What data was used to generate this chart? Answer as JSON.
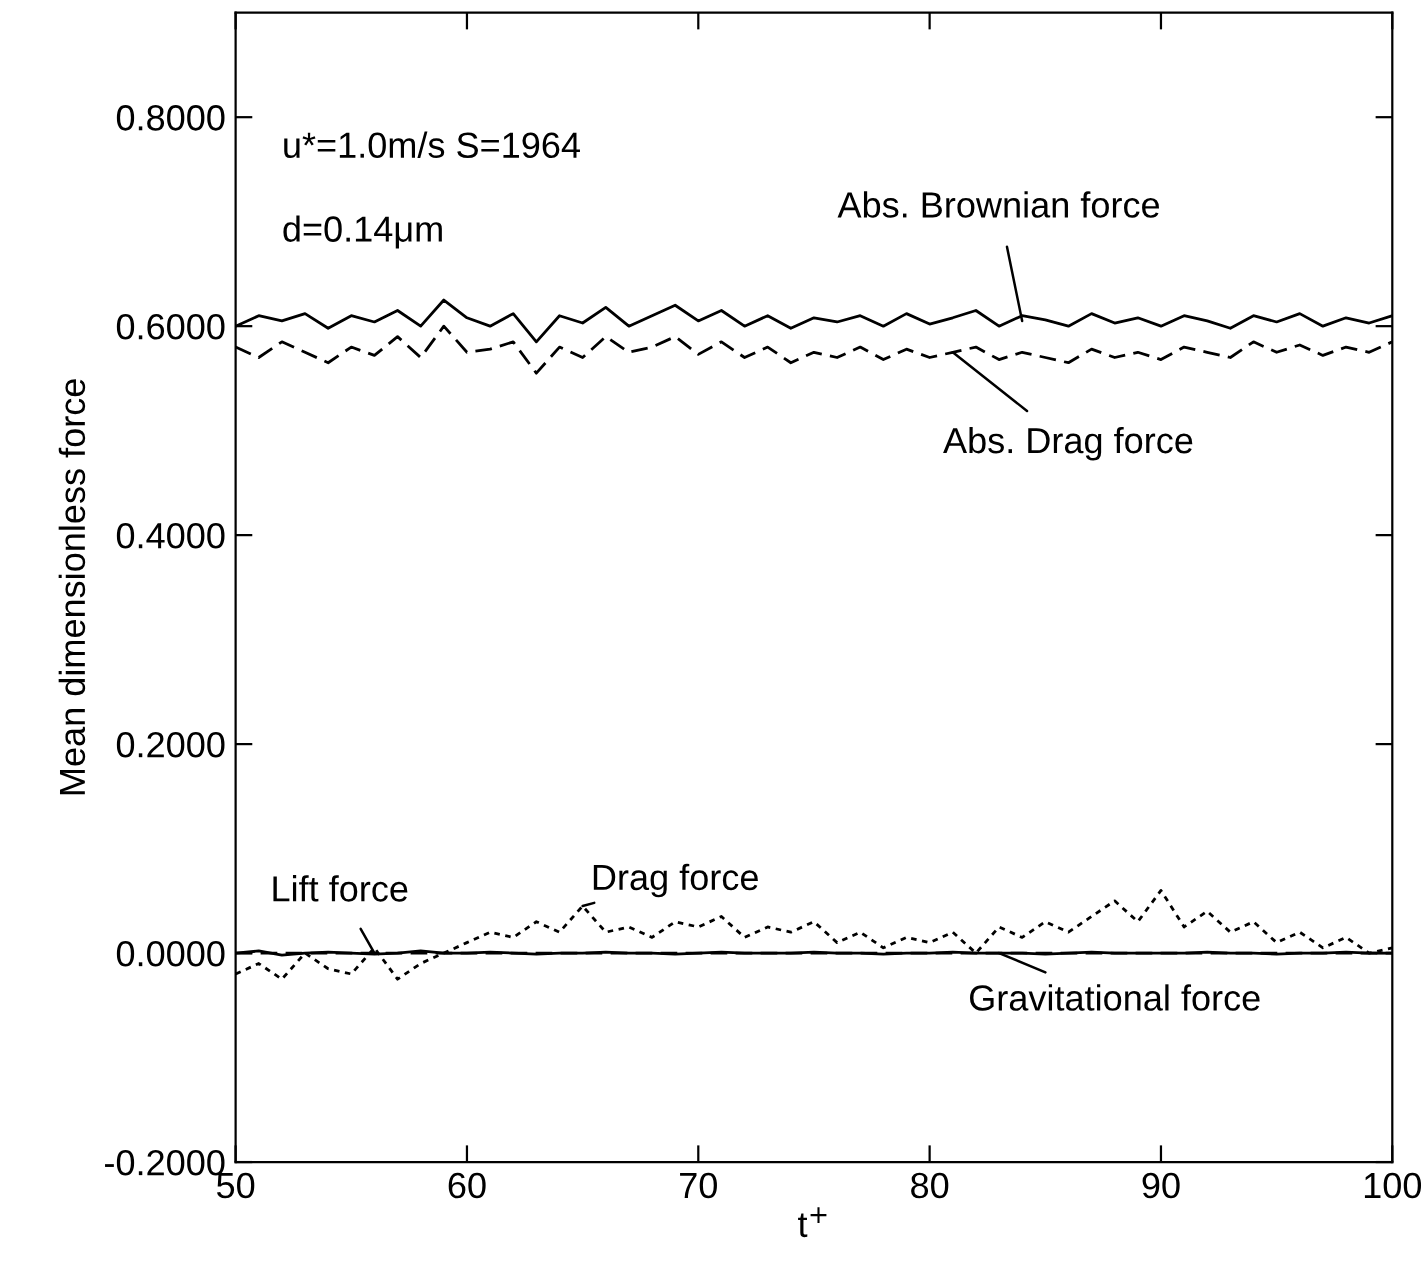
{
  "chart_data": {
    "type": "line",
    "xlabel": "t$^{+}$",
    "ylabel": "Mean dimensionless force",
    "grid": false,
    "legend": false,
    "marker": "none",
    "xlim": [
      50,
      100
    ],
    "xticks": [
      50,
      60,
      70,
      80,
      90,
      100
    ],
    "ylim": [
      -0.2,
      0.9
    ],
    "yticks": [
      {
        "value": -0.2,
        "label": "-0.2000"
      },
      {
        "value": 0.0,
        "label": "0.0000"
      },
      {
        "value": 0.2,
        "label": "0.2000"
      },
      {
        "value": 0.4,
        "label": "0.4000"
      },
      {
        "value": 0.6,
        "label": "0.6000"
      },
      {
        "value": 0.8,
        "label": "0.8000"
      }
    ],
    "x": [
      50,
      51,
      52,
      53,
      54,
      55,
      56,
      57,
      58,
      59,
      60,
      61,
      62,
      63,
      64,
      65,
      66,
      67,
      68,
      69,
      70,
      71,
      72,
      73,
      74,
      75,
      76,
      77,
      78,
      79,
      80,
      81,
      82,
      83,
      84,
      85,
      86,
      87,
      88,
      89,
      90,
      91,
      92,
      93,
      94,
      95,
      96,
      97,
      98,
      99,
      100
    ],
    "series": [
      {
        "color": "#000000",
        "line_style": "solid",
        "values": [
          0.6,
          0.61,
          0.605,
          0.612,
          0.598,
          0.61,
          0.604,
          0.615,
          0.6,
          0.625,
          0.608,
          0.6,
          0.612,
          0.585,
          0.61,
          0.603,
          0.618,
          0.6,
          0.61,
          0.62,
          0.605,
          0.615,
          0.6,
          0.61,
          0.598,
          0.608,
          0.604,
          0.61,
          0.6,
          0.612,
          0.602,
          0.608,
          0.615,
          0.6,
          0.61,
          0.606,
          0.6,
          0.612,
          0.603,
          0.608,
          0.6,
          0.61,
          0.605,
          0.598,
          0.61,
          0.604,
          0.612,
          0.6,
          0.608,
          0.603,
          0.61
        ]
      },
      {
        "color": "#000000",
        "line_style": "dashed",
        "values": [
          0.58,
          0.57,
          0.585,
          0.575,
          0.565,
          0.58,
          0.572,
          0.59,
          0.57,
          0.6,
          0.575,
          0.578,
          0.585,
          0.555,
          0.58,
          0.57,
          0.59,
          0.575,
          0.58,
          0.59,
          0.573,
          0.585,
          0.57,
          0.58,
          0.565,
          0.575,
          0.57,
          0.58,
          0.568,
          0.578,
          0.57,
          0.575,
          0.58,
          0.568,
          0.575,
          0.57,
          0.565,
          0.578,
          0.57,
          0.575,
          0.568,
          0.58,
          0.575,
          0.57,
          0.585,
          0.575,
          0.582,
          0.572,
          0.58,
          0.575,
          0.585
        ]
      },
      {
        "color": "#000000",
        "line_style": "dotted",
        "values": [
          -0.02,
          -0.01,
          -0.025,
          0.0,
          -0.015,
          -0.02,
          0.005,
          -0.025,
          -0.01,
          0.0,
          0.01,
          0.02,
          0.015,
          0.03,
          0.02,
          0.045,
          0.02,
          0.025,
          0.015,
          0.03,
          0.025,
          0.035,
          0.015,
          0.025,
          0.02,
          0.03,
          0.01,
          0.02,
          0.005,
          0.015,
          0.01,
          0.02,
          0.0,
          0.025,
          0.015,
          0.03,
          0.02,
          0.035,
          0.05,
          0.03,
          0.06,
          0.025,
          0.04,
          0.02,
          0.03,
          0.01,
          0.02,
          0.005,
          0.015,
          0.0,
          0.005
        ]
      },
      {
        "color": "#000000",
        "line_style": "solid",
        "values": [
          0.0,
          0.002,
          -0.002,
          0.0,
          0.001,
          0.0,
          -0.001,
          0.0,
          0.002,
          0.0,
          0.0,
          0.001,
          0.0,
          -0.001,
          0.0,
          0.0,
          0.001,
          0.0,
          0.0,
          -0.001,
          0.0,
          0.001,
          0.0,
          0.0,
          0.0,
          0.001,
          0.0,
          0.0,
          -0.001,
          0.0,
          0.0,
          0.001,
          0.0,
          0.0,
          0.0,
          -0.001,
          0.0,
          0.001,
          0.0,
          0.0,
          0.0,
          0.0,
          0.001,
          0.0,
          0.0,
          -0.001,
          0.0,
          0.0,
          0.001,
          0.0,
          0.0
        ]
      },
      {
        "color": "#000000",
        "line_style": "dashed",
        "values": [
          0.0,
          0.0,
          0.0,
          0.0,
          0.0,
          0.0,
          0.0,
          0.0,
          0.0,
          0.0,
          0.0,
          0.0,
          0.0,
          0.0,
          0.0,
          0.0,
          0.0,
          0.0,
          0.0,
          0.0,
          0.0,
          0.0,
          0.0,
          0.0,
          0.0,
          0.0,
          0.0,
          0.0,
          0.0,
          0.0,
          0.0,
          0.0,
          0.0,
          0.0,
          0.0,
          0.0,
          0.0,
          0.0,
          0.0,
          0.0,
          0.0,
          0.0,
          0.0,
          0.0,
          0.0,
          0.0,
          0.0,
          0.0,
          0.0,
          0.0,
          0.0
        ]
      }
    ],
    "annotations": [
      "u*=1.0m/s S=1964",
      "d=0.14μm",
      {
        "text": "Abs. Brownian force",
        "x": 84,
        "y": 0.605
      },
      {
        "text": "Abs. Drag force",
        "x": 81,
        "y": 0.575
      },
      {
        "text": "Lift force",
        "x": 56,
        "y": 0.0
      },
      {
        "text": "Drag force",
        "x": 65,
        "y": 0.045
      },
      {
        "text": "Gravitational force",
        "x": 83,
        "y": 0.0
      }
    ]
  }
}
